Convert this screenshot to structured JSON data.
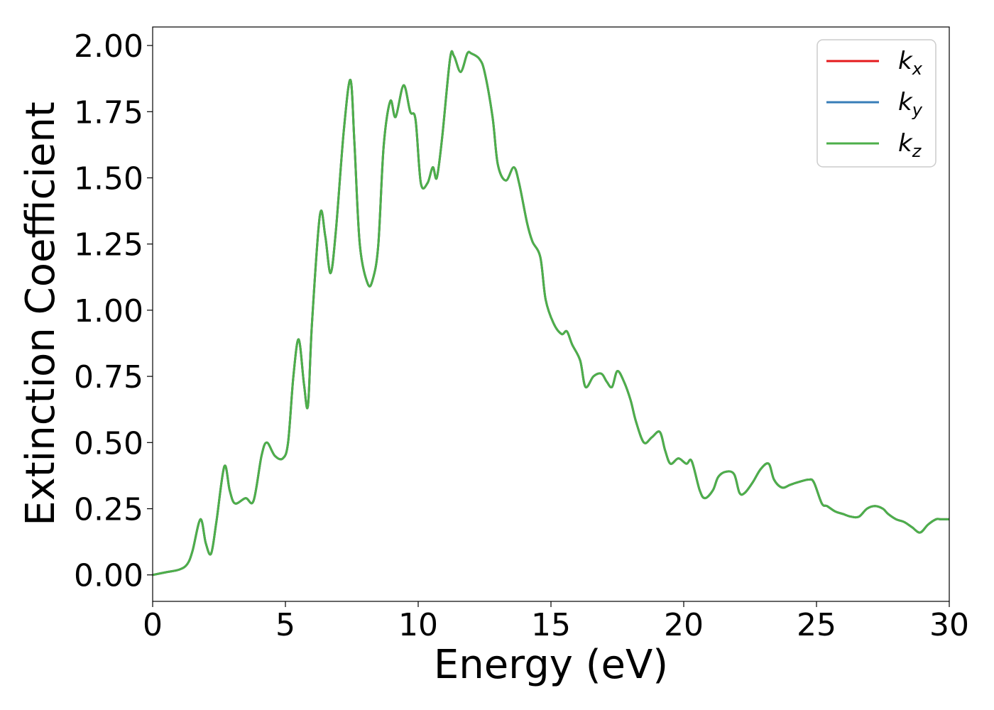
{
  "chart_data": {
    "type": "line",
    "xlabel": "Energy (eV)",
    "ylabel": "Extinction Coefficient",
    "xlim": [
      0,
      30
    ],
    "ylim": [
      -0.1,
      2.07
    ],
    "xticks": [
      0,
      5,
      10,
      15,
      20,
      25,
      30
    ],
    "xtick_labels": [
      "0",
      "5",
      "10",
      "15",
      "20",
      "25",
      "30"
    ],
    "yticks": [
      0.0,
      0.25,
      0.5,
      0.75,
      1.0,
      1.25,
      1.5,
      1.75,
      2.0
    ],
    "ytick_labels": [
      "0.00",
      "0.25",
      "0.50",
      "0.75",
      "1.00",
      "1.25",
      "1.50",
      "1.75",
      "2.00"
    ],
    "grid": false,
    "legend_position": "top-right",
    "series": [
      {
        "name": "k_x",
        "label_main": "k",
        "label_sub": "x",
        "color": "#e41a1c"
      },
      {
        "name": "k_y",
        "label_main": "k",
        "label_sub": "y",
        "color": "#377eb8"
      },
      {
        "name": "k_z",
        "label_main": "k",
        "label_sub": "z",
        "color": "#4daf4a"
      }
    ],
    "x": [
      0,
      0.5,
      1.0,
      1.3,
      1.5,
      1.8,
      2.0,
      2.2,
      2.4,
      2.7,
      2.9,
      3.1,
      3.5,
      3.8,
      4.1,
      4.3,
      4.6,
      4.9,
      5.1,
      5.3,
      5.5,
      5.7,
      5.85,
      6.0,
      6.3,
      6.5,
      6.7,
      6.9,
      7.2,
      7.45,
      7.6,
      7.8,
      8.1,
      8.3,
      8.5,
      8.7,
      8.95,
      9.15,
      9.45,
      9.7,
      9.9,
      10.1,
      10.35,
      10.55,
      10.7,
      10.9,
      11.2,
      11.35,
      11.6,
      11.85,
      12.0,
      12.3,
      12.5,
      12.8,
      13.0,
      13.3,
      13.6,
      13.8,
      14.1,
      14.3,
      14.6,
      14.8,
      15.1,
      15.4,
      15.6,
      15.8,
      16.1,
      16.3,
      16.6,
      16.9,
      17.1,
      17.3,
      17.5,
      17.75,
      18.0,
      18.2,
      18.5,
      18.8,
      19.1,
      19.3,
      19.5,
      19.8,
      20.1,
      20.3,
      20.6,
      20.8,
      21.1,
      21.3,
      21.6,
      21.9,
      22.1,
      22.3,
      22.6,
      22.9,
      23.2,
      23.4,
      23.7,
      24.0,
      24.3,
      24.7,
      24.9,
      25.2,
      25.4,
      25.7,
      26.0,
      26.3,
      26.6,
      26.9,
      27.2,
      27.5,
      27.7,
      28.0,
      28.3,
      28.6,
      28.9,
      29.2,
      29.5,
      29.7,
      30.0
    ],
    "y": [
      0.0,
      0.01,
      0.02,
      0.04,
      0.09,
      0.21,
      0.12,
      0.08,
      0.2,
      0.41,
      0.32,
      0.27,
      0.29,
      0.28,
      0.45,
      0.5,
      0.45,
      0.44,
      0.5,
      0.75,
      0.89,
      0.72,
      0.64,
      0.95,
      1.36,
      1.28,
      1.14,
      1.3,
      1.68,
      1.87,
      1.63,
      1.25,
      1.1,
      1.12,
      1.25,
      1.62,
      1.79,
      1.73,
      1.85,
      1.75,
      1.72,
      1.48,
      1.48,
      1.54,
      1.5,
      1.65,
      1.95,
      1.96,
      1.9,
      1.97,
      1.97,
      1.95,
      1.9,
      1.73,
      1.55,
      1.49,
      1.54,
      1.48,
      1.33,
      1.26,
      1.2,
      1.04,
      0.95,
      0.91,
      0.92,
      0.87,
      0.81,
      0.71,
      0.75,
      0.76,
      0.73,
      0.71,
      0.77,
      0.73,
      0.66,
      0.58,
      0.5,
      0.52,
      0.54,
      0.47,
      0.42,
      0.44,
      0.42,
      0.43,
      0.32,
      0.29,
      0.32,
      0.37,
      0.39,
      0.38,
      0.31,
      0.31,
      0.35,
      0.4,
      0.42,
      0.36,
      0.33,
      0.34,
      0.35,
      0.36,
      0.35,
      0.27,
      0.26,
      0.24,
      0.23,
      0.22,
      0.22,
      0.25,
      0.26,
      0.25,
      0.23,
      0.21,
      0.2,
      0.18,
      0.16,
      0.19,
      0.21,
      0.21,
      0.21
    ]
  }
}
